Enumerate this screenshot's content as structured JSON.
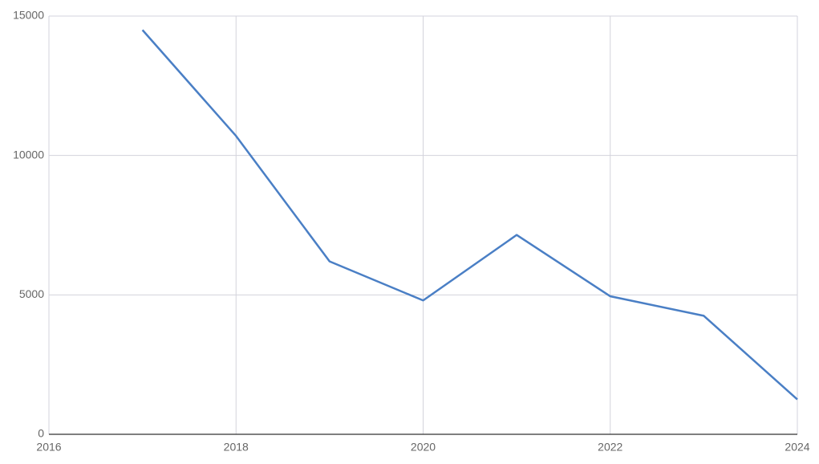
{
  "chart_data": {
    "type": "line",
    "x": [
      2017,
      2018,
      2019,
      2020,
      2021,
      2022,
      2023,
      2024
    ],
    "series": [
      {
        "color": "#4a7fc5",
        "values": [
          14500,
          10700,
          6200,
          4800,
          7150,
          4950,
          4250,
          1250
        ]
      }
    ],
    "xlim": [
      2016,
      2024
    ],
    "xticks": [
      2016,
      2018,
      2020,
      2022,
      2024
    ],
    "ylim": [
      0,
      15000
    ],
    "yticks": [
      0,
      5000,
      10000,
      15000
    ],
    "grid": true
  }
}
